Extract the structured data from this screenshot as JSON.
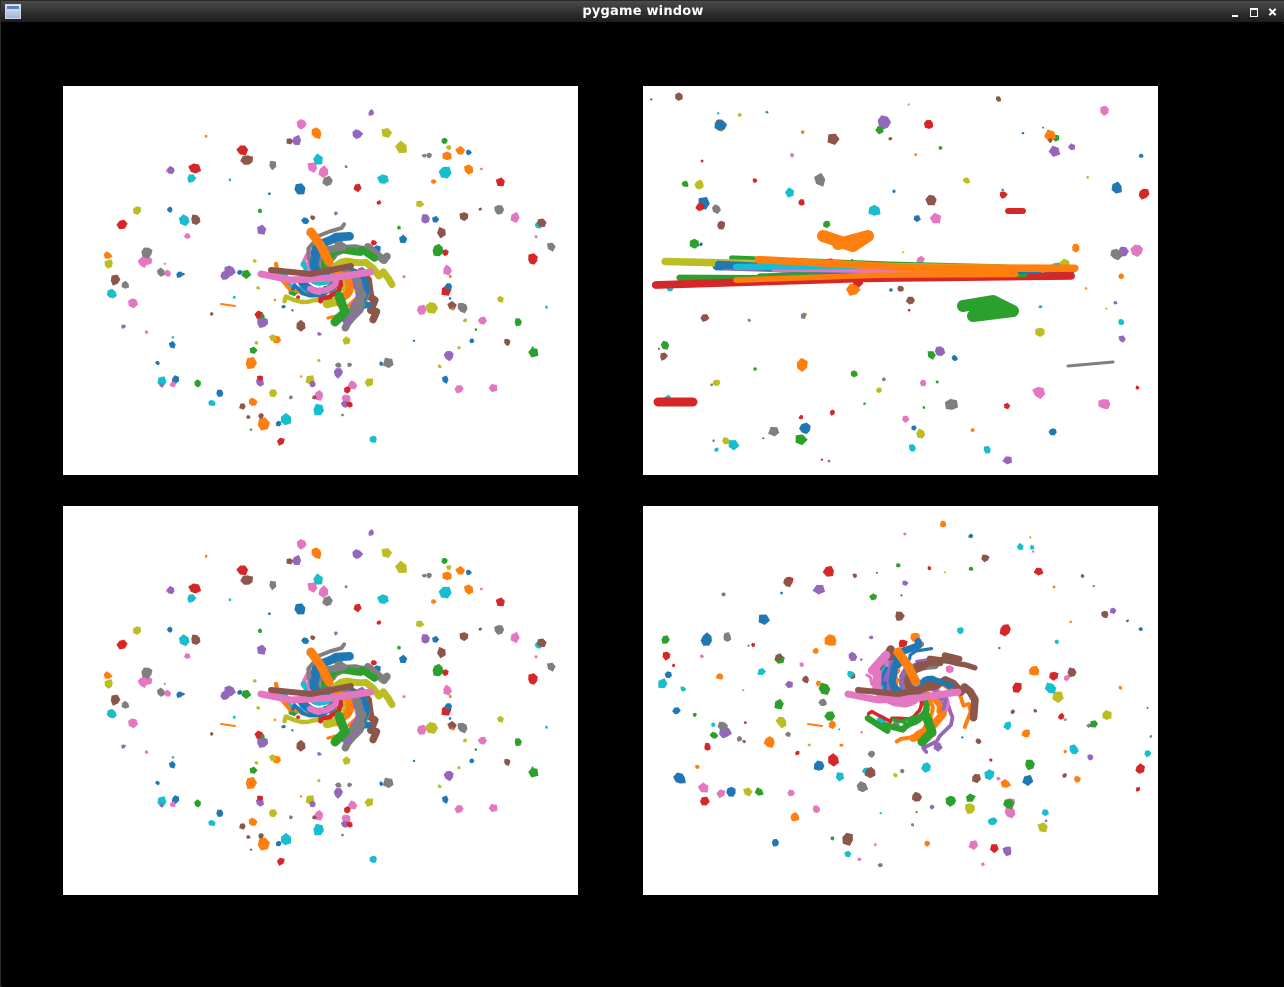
{
  "window": {
    "title": "pygame window",
    "minimize_icon": "minimize-icon",
    "maximize_icon": "maximize-icon",
    "close_icon": "close-icon",
    "app_icon": "window-app-icon"
  },
  "palette": [
    "#1f77b4",
    "#ff7f0e",
    "#2ca02c",
    "#d62728",
    "#9467bd",
    "#8c564b",
    "#e377c2",
    "#7f7f7f",
    "#bcbd22",
    "#17becf"
  ],
  "panels": [
    {
      "id": "panel-tl",
      "layout": "radial-burst",
      "seed": 11
    },
    {
      "id": "panel-tr",
      "layout": "horizontal-streak",
      "seed": 29
    },
    {
      "id": "panel-bl",
      "layout": "radial-burst",
      "seed": 11
    },
    {
      "id": "panel-br",
      "layout": "wide-burst",
      "seed": 47
    }
  ]
}
